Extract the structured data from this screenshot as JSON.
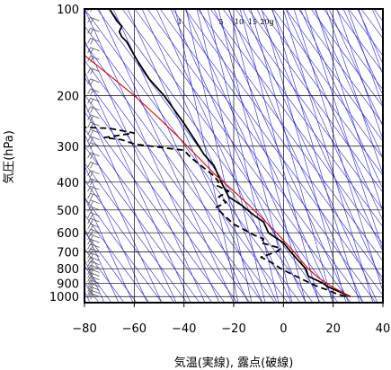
{
  "chart_data": {
    "type": "line",
    "title": "",
    "xlabel": "気温(実線), 露点(破線)",
    "ylabel": "気圧(hPa)",
    "xlim": [
      -80,
      40
    ],
    "ylim": [
      1050,
      100
    ],
    "y_scale": "log",
    "x_ticks": [
      -80,
      -60,
      -40,
      -20,
      0,
      20,
      40
    ],
    "y_ticks": [
      100,
      200,
      300,
      400,
      500,
      600,
      700,
      800,
      900,
      1000
    ],
    "mixing_ratio_labels": [
      "1",
      "5",
      "10",
      "15",
      "20g"
    ],
    "grid": true,
    "colors": {
      "temperature": "#000000",
      "dewpoint": "#000000",
      "parcel": "#e00000",
      "background_lines": "#2222dd",
      "wind_barbs": "#555555"
    },
    "series": [
      {
        "type": "temperature",
        "points": [
          [
            27,
            1000
          ],
          [
            24,
            975
          ],
          [
            21,
            950
          ],
          [
            18,
            925
          ],
          [
            16,
            900
          ],
          [
            13,
            875
          ],
          [
            10,
            850
          ],
          [
            9,
            800
          ],
          [
            6,
            750
          ],
          [
            3,
            700
          ],
          [
            0,
            650
          ],
          [
            -3,
            625
          ],
          [
            -6,
            600
          ],
          [
            -8,
            550
          ],
          [
            -12,
            520
          ],
          [
            -17,
            480
          ],
          [
            -22,
            450
          ],
          [
            -25,
            400
          ],
          [
            -28,
            350
          ],
          [
            -32,
            320
          ],
          [
            -34,
            300
          ],
          [
            -40,
            250
          ],
          [
            -48,
            200
          ],
          [
            -54,
            175
          ],
          [
            -59,
            150
          ],
          [
            -63,
            130
          ],
          [
            -65,
            125
          ],
          [
            -66,
            120
          ],
          [
            -65,
            115
          ],
          [
            -67,
            110
          ],
          [
            -69,
            103
          ],
          [
            -70,
            100
          ]
        ]
      },
      {
        "type": "dewpoint",
        "points": [
          [
            25,
            1000
          ],
          [
            21,
            975
          ],
          [
            18,
            950
          ],
          [
            14,
            925
          ],
          [
            11,
            900
          ],
          [
            8,
            875
          ],
          [
            5,
            850
          ],
          [
            2,
            825
          ],
          [
            -1,
            800
          ],
          [
            -5,
            760
          ],
          [
            -9,
            730
          ],
          [
            -3,
            700
          ],
          [
            -1,
            680
          ],
          [
            -9,
            650
          ],
          [
            -8,
            630
          ],
          [
            -12,
            610
          ],
          [
            -15,
            590
          ],
          [
            -20,
            560
          ],
          [
            -24,
            520
          ],
          [
            -27,
            490
          ],
          [
            -23,
            470
          ],
          [
            -26,
            450
          ],
          [
            -22,
            430
          ],
          [
            -27,
            410
          ],
          [
            -26,
            400
          ],
          [
            -28,
            380
          ],
          [
            -37,
            330
          ],
          [
            -40,
            310
          ],
          [
            -60,
            295
          ],
          [
            -65,
            285
          ],
          [
            -72,
            280
          ],
          [
            -60,
            270
          ],
          [
            -70,
            260
          ],
          [
            -80,
            258
          ]
        ]
      },
      {
        "type": "parcel",
        "points": [
          [
            27,
            1000
          ],
          [
            20,
            930
          ],
          [
            14,
            860
          ],
          [
            10,
            800
          ],
          [
            6,
            730
          ],
          [
            3,
            680
          ],
          [
            -2,
            610
          ],
          [
            -8,
            540
          ],
          [
            -14,
            480
          ],
          [
            -20,
            430
          ],
          [
            -27,
            380
          ],
          [
            -34,
            330
          ],
          [
            -42,
            280
          ],
          [
            -50,
            240
          ],
          [
            -60,
            200
          ],
          [
            -70,
            170
          ],
          [
            -80,
            145
          ]
        ]
      }
    ],
    "wind_barbs": {
      "x_position": -74,
      "pressures": [
        1000,
        975,
        950,
        925,
        900,
        875,
        850,
        825,
        800,
        775,
        750,
        725,
        700,
        675,
        650,
        625,
        600,
        575,
        550,
        525,
        500,
        475,
        450,
        425,
        400,
        375,
        350,
        325,
        300,
        285,
        270,
        255,
        240,
        225,
        210,
        195,
        180,
        165,
        150,
        140,
        130,
        120,
        110,
        100
      ]
    }
  }
}
